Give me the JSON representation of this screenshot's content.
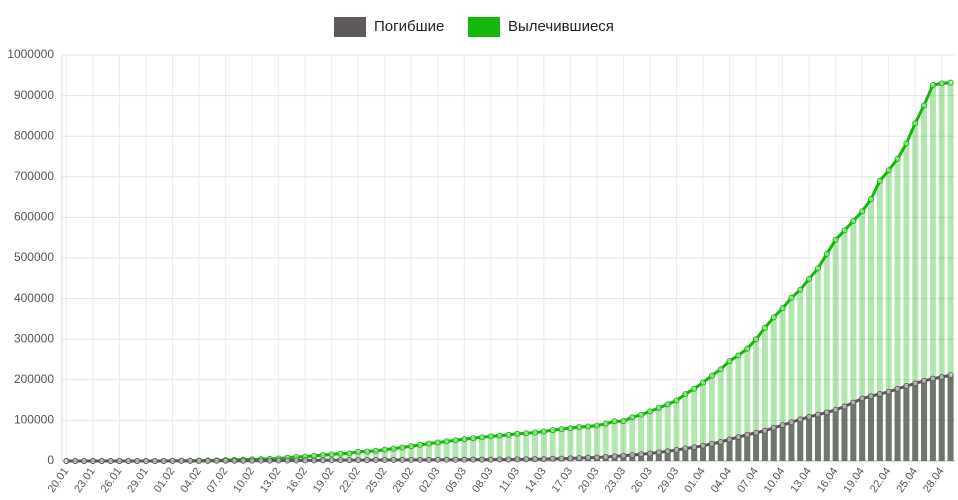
{
  "chart_data": {
    "type": "bar-line",
    "categories": [
      "20.01",
      null,
      null,
      "23.01",
      null,
      null,
      "26.01",
      null,
      null,
      "29.01",
      null,
      null,
      "01.02",
      null,
      null,
      "04.02",
      null,
      null,
      "07.02",
      null,
      null,
      "10.02",
      null,
      null,
      "13.02",
      null,
      null,
      "16.02",
      null,
      null,
      "19.02",
      null,
      null,
      "22.02",
      null,
      null,
      "25.02",
      null,
      null,
      "28.02",
      null,
      null,
      "02.03",
      null,
      null,
      "05.03",
      null,
      null,
      "08.03",
      null,
      null,
      "11.03",
      null,
      null,
      "14.03",
      null,
      null,
      "17.03",
      null,
      null,
      "20.03",
      null,
      null,
      "23.03",
      null,
      null,
      "26.03",
      null,
      null,
      "29.03",
      null,
      null,
      "01.04",
      null,
      null,
      "04.04",
      null,
      null,
      "07.04",
      null,
      null,
      "10.04",
      null,
      null,
      "13.04",
      null,
      null,
      "16.04",
      null,
      null,
      "19.04",
      null,
      null,
      "22.04",
      null,
      null,
      "25.04",
      null,
      null,
      "28.04",
      null
    ],
    "series": [
      {
        "name": "Погибшие",
        "color": "#5e5a5b",
        "values": [
          3,
          5,
          6,
          9,
          17,
          18,
          26,
          42,
          56,
          82,
          131,
          133,
          171,
          213,
          259,
          362,
          426,
          492,
          564,
          634,
          719,
          806,
          906,
          1013,
          1113,
          1118,
          1371,
          1523,
          1666,
          1770,
          1868,
          2007,
          2122,
          2247,
          2251,
          2458,
          2469,
          2629,
          2708,
          2770,
          2814,
          2872,
          2941,
          2996,
          3085,
          3160,
          3254,
          3348,
          3460,
          3558,
          3803,
          3996,
          4262,
          4615,
          4720,
          5404,
          5819,
          6440,
          7126,
          7905,
          8733,
          9867,
          11299,
          12973,
          14623,
          16497,
          18615,
          21181,
          23970,
          27198,
          30652,
          33925,
          37582,
          42107,
          46809,
          52983,
          58787,
          64606,
          69374,
          74565,
          81865,
          88338,
          95455,
          102525,
          108503,
          114091,
          119482,
          125984,
          134177,
          143800,
          153821,
          159509,
          165069,
          170436,
          177640,
          184681,
          191167,
          197246,
          202846,
          206544,
          211167
        ]
      },
      {
        "name": "Вылечившиеся",
        "color": "#14b80b",
        "values": [
          0,
          0,
          30,
          30,
          40,
          50,
          50,
          60,
          110,
          120,
          140,
          220,
          280,
          470,
          630,
          850,
          1120,
          1490,
          2050,
          2620,
          3250,
          3950,
          4680,
          5150,
          6300,
          8100,
          9400,
          10900,
          12600,
          14400,
          16200,
          18200,
          18900,
          22700,
          23400,
          25200,
          27900,
          30400,
          33300,
          36700,
          39800,
          42700,
          45600,
          48200,
          51200,
          53800,
          55900,
          58400,
          60700,
          62500,
          64400,
          67000,
          68300,
          70300,
          72600,
          76000,
          78100,
          80800,
          83300,
          84900,
          87400,
          91600,
          97900,
          98300,
          107900,
          113800,
          122200,
          130900,
          139400,
          149100,
          164600,
          178000,
          193200,
          210300,
          226000,
          246100,
          260000,
          276500,
          300000,
          328000,
          353900,
          376100,
          402100,
          421700,
          448700,
          474300,
          510000,
          545000,
          568000,
          591000,
          615000,
          645000,
          690000,
          716000,
          744000,
          782000,
          832000,
          876000,
          926000,
          930000,
          932000
        ]
      }
    ],
    "ylim": [
      0,
      1000000
    ],
    "yticks": [
      0,
      100000,
      200000,
      300000,
      400000,
      500000,
      600000,
      700000,
      800000,
      900000,
      1000000
    ],
    "grid": true,
    "legend": "top"
  }
}
